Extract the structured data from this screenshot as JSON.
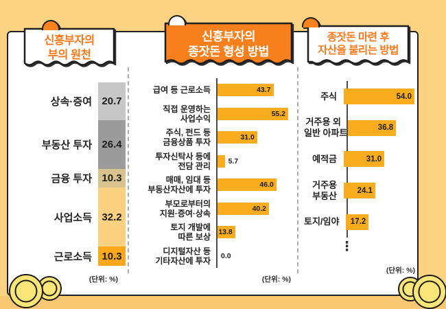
{
  "page": {
    "bg_color": "#FBD382",
    "accent_orange": "#F8801C",
    "bar_orange": "#F9AC1E"
  },
  "panel1": {
    "title_lines": [
      "신흥부자의",
      "부의 원천"
    ],
    "unit": "(단위: %)"
  },
  "panel2": {
    "title_lines": [
      "신흥부자의",
      "종잣돈 형성 방법"
    ],
    "unit": "(단위: %)"
  },
  "panel3": {
    "title_lines": [
      "종잣돈 마련 후",
      "자산을 불리는 방법"
    ],
    "unit": "(단위: %)",
    "more_indicator": "⋮"
  },
  "chart_data": [
    {
      "type": "bar",
      "variant": "stacked-vertical",
      "title": "신흥부자의 부의 원천",
      "unit": "%",
      "categories": [
        "상속·증여",
        "부동산 투자",
        "금융 투자",
        "사업소득",
        "근로소득"
      ],
      "values": [
        20.7,
        26.4,
        10.3,
        32.2,
        10.3
      ],
      "value_labels": [
        "20.7",
        "26.4",
        "10.3",
        "32.2",
        "10.3"
      ],
      "segment_colors": [
        "#C7C7C7",
        "#9B9B9B",
        "#D8C28E",
        "#FBD181",
        "#FAA71C"
      ],
      "total": 100
    },
    {
      "type": "bar",
      "variant": "horizontal",
      "title": "신흥부자의 종잣돈 형성 방법",
      "unit": "%",
      "categories": [
        [
          "급여 등 근로소득"
        ],
        [
          "직접 운영하는",
          "사업수익"
        ],
        [
          "주식, 펀드 등",
          "금융상품 투자"
        ],
        [
          "투자신탁사 등에",
          "전담 관리"
        ],
        [
          "매매, 임대 등",
          "부동산자산에 투자"
        ],
        [
          "부모로부터의",
          "지원·증여·상속"
        ],
        [
          "토지 개발에",
          "따른 보상"
        ],
        [
          "디지털자산 등",
          "기타자산에 투자"
        ]
      ],
      "values": [
        43.7,
        55.2,
        31.0,
        5.7,
        46.0,
        40.2,
        13.8,
        0.0
      ],
      "value_labels": [
        "43.7",
        "55.2",
        "31.0",
        "5.7",
        "46.0",
        "40.2",
        "13.8",
        "0.0"
      ],
      "bar_color": "#F9AC1E",
      "xmax": 55.2
    },
    {
      "type": "bar",
      "variant": "horizontal",
      "title": "종잣돈 마련 후 자산을 불리는 방법",
      "unit": "%",
      "categories": [
        [
          "주식"
        ],
        [
          "거주용 외",
          "일반 아파트"
        ],
        [
          "예적금"
        ],
        [
          "거주용",
          "부동산"
        ],
        [
          "토지/임야"
        ]
      ],
      "values": [
        54.0,
        36.8,
        31.0,
        24.1,
        17.2
      ],
      "value_labels": [
        "54.0",
        "36.8",
        "31.0",
        "24.1",
        "17.2"
      ],
      "bar_color": "#F9AC1E",
      "truncated": true,
      "xmax": 54.0
    }
  ]
}
